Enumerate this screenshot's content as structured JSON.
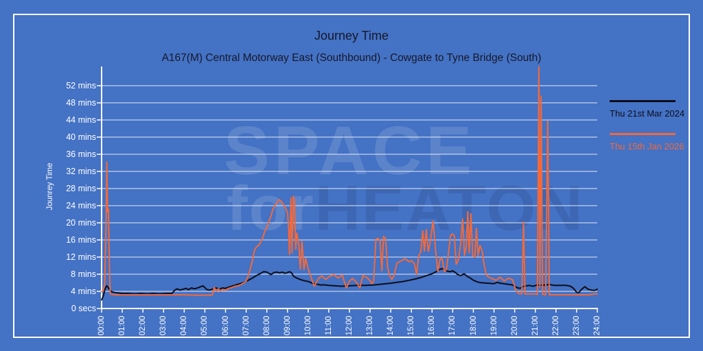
{
  "title": "Journey Time",
  "subtitle": "A167(M) Central Motorway East (Southbound) - Cowgate to Tyne Bridge (South)",
  "watermark": {
    "line1": "SPACE",
    "line2_light": "for",
    "line2_dark": "HEATON"
  },
  "colors": {
    "background": "#4472c4",
    "frame": "#ffffff",
    "grid": "#ffffff",
    "tick_text": "#ffffff",
    "title_text": "#15182b",
    "series_2024": "#0d0d1a",
    "series_2026": "#f2693c"
  },
  "chart_data": {
    "type": "line",
    "title": "Journey Time",
    "xlabel": "",
    "ylabel": "Jounrey Time",
    "grid": true,
    "x_axis": {
      "range_hours": [
        0,
        24
      ],
      "ticks": [
        "00:00",
        "01:00",
        "02:00",
        "03:00",
        "04:00",
        "05:00",
        "06:00",
        "07:00",
        "08:00",
        "09:00",
        "10:00",
        "11:00",
        "12:00",
        "13:00",
        "14:00",
        "15:00",
        "16:00",
        "17:00",
        "18:00",
        "19:00",
        "20:00",
        "21:00",
        "22:00",
        "23:00",
        "24:00"
      ]
    },
    "y_axis": {
      "unit": "minutes",
      "ylim_minutes": [
        0,
        56.5
      ],
      "tick_minutes": [
        0,
        4,
        8,
        12,
        16,
        20,
        24,
        28,
        32,
        36,
        40,
        44,
        48,
        52
      ],
      "tick_labels": [
        "0 secs",
        "4 mins",
        "8 mins",
        "12 mins",
        "16 mins",
        "20 mins",
        "24 mins",
        "28 mins",
        "32 mins",
        "36 mins",
        "40 mins",
        "44 mins",
        "48 mins",
        "52 mins"
      ]
    },
    "legend": {
      "position": "right",
      "entries": [
        {
          "label": "Thu 21st Mar 2024",
          "color": "#0d0d1a"
        },
        {
          "label": "Thu 15th Jan 2026",
          "color": "#f2693c"
        }
      ]
    },
    "series": [
      {
        "name": "Thu 21st Mar 2024",
        "color": "#0d0d1a",
        "points_hour_minutes": [
          [
            0,
            2.0
          ],
          [
            0.08,
            2.9
          ],
          [
            0.17,
            4.6
          ],
          [
            0.25,
            5.3
          ],
          [
            0.33,
            4.8
          ],
          [
            0.42,
            4.2
          ],
          [
            0.5,
            3.9
          ],
          [
            0.67,
            3.7
          ],
          [
            0.85,
            3.6
          ],
          [
            1.0,
            3.5
          ],
          [
            1.3,
            3.5
          ],
          [
            1.6,
            3.4
          ],
          [
            1.9,
            3.5
          ],
          [
            2.2,
            3.4
          ],
          [
            2.5,
            3.5
          ],
          [
            2.8,
            3.4
          ],
          [
            3.1,
            3.5
          ],
          [
            3.4,
            3.5
          ],
          [
            3.55,
            4.3
          ],
          [
            3.65,
            4.6
          ],
          [
            3.8,
            4.3
          ],
          [
            3.95,
            4.5
          ],
          [
            4.1,
            4.7
          ],
          [
            4.2,
            4.4
          ],
          [
            4.35,
            4.8
          ],
          [
            4.5,
            4.6
          ],
          [
            4.7,
            4.9
          ],
          [
            4.9,
            5.3
          ],
          [
            5.0,
            4.9
          ],
          [
            5.1,
            4.4
          ],
          [
            5.25,
            4.3
          ],
          [
            5.4,
            4.6
          ],
          [
            5.55,
            4.8
          ],
          [
            5.7,
            4.5
          ],
          [
            5.85,
            4.8
          ],
          [
            6.0,
            4.7
          ],
          [
            6.15,
            5.0
          ],
          [
            6.3,
            5.2
          ],
          [
            6.5,
            5.5
          ],
          [
            6.7,
            5.8
          ],
          [
            6.9,
            6.1
          ],
          [
            7.1,
            6.6
          ],
          [
            7.3,
            7.1
          ],
          [
            7.5,
            7.7
          ],
          [
            7.7,
            8.2
          ],
          [
            7.85,
            8.6
          ],
          [
            8.0,
            8.5
          ],
          [
            8.1,
            8.2
          ],
          [
            8.2,
            7.9
          ],
          [
            8.35,
            8.4
          ],
          [
            8.5,
            8.5
          ],
          [
            8.62,
            8.3
          ],
          [
            8.75,
            8.5
          ],
          [
            8.88,
            8.2
          ],
          [
            9.0,
            8.4
          ],
          [
            9.1,
            8.6
          ],
          [
            9.2,
            8.3
          ],
          [
            9.3,
            7.5
          ],
          [
            9.45,
            7.1
          ],
          [
            9.6,
            6.8
          ],
          [
            9.8,
            6.5
          ],
          [
            10.0,
            6.3
          ],
          [
            10.2,
            5.9
          ],
          [
            10.4,
            5.7
          ],
          [
            10.6,
            5.5
          ],
          [
            10.8,
            5.5
          ],
          [
            11.0,
            5.4
          ],
          [
            11.3,
            5.3
          ],
          [
            11.6,
            5.2
          ],
          [
            12.0,
            5.3
          ],
          [
            12.4,
            5.4
          ],
          [
            12.8,
            5.4
          ],
          [
            13.2,
            5.5
          ],
          [
            13.6,
            5.7
          ],
          [
            14.0,
            5.9
          ],
          [
            14.3,
            6.1
          ],
          [
            14.6,
            6.3
          ],
          [
            14.9,
            6.6
          ],
          [
            15.2,
            6.9
          ],
          [
            15.5,
            7.3
          ],
          [
            15.8,
            7.8
          ],
          [
            16.0,
            8.1
          ],
          [
            16.2,
            8.6
          ],
          [
            16.35,
            9.1
          ],
          [
            16.5,
            9.3
          ],
          [
            16.62,
            9.0
          ],
          [
            16.75,
            8.7
          ],
          [
            16.88,
            8.6
          ],
          [
            17.0,
            8.8
          ],
          [
            17.1,
            8.5
          ],
          [
            17.25,
            7.9
          ],
          [
            17.4,
            7.7
          ],
          [
            17.55,
            8.1
          ],
          [
            17.7,
            7.5
          ],
          [
            17.85,
            7.1
          ],
          [
            18.0,
            6.6
          ],
          [
            18.2,
            6.2
          ],
          [
            18.4,
            6.0
          ],
          [
            18.7,
            5.9
          ],
          [
            19.0,
            5.8
          ],
          [
            19.15,
            6.1
          ],
          [
            19.3,
            5.9
          ],
          [
            19.6,
            5.7
          ],
          [
            19.9,
            5.5
          ],
          [
            20.1,
            4.9
          ],
          [
            20.25,
            4.7
          ],
          [
            20.45,
            5.2
          ],
          [
            20.7,
            5.4
          ],
          [
            20.9,
            5.2
          ],
          [
            21.1,
            5.5
          ],
          [
            21.3,
            5.4
          ],
          [
            21.5,
            5.5
          ],
          [
            21.7,
            5.6
          ],
          [
            21.9,
            5.4
          ],
          [
            22.2,
            5.4
          ],
          [
            22.5,
            5.4
          ],
          [
            22.7,
            5.2
          ],
          [
            22.85,
            4.7
          ],
          [
            23.0,
            3.8
          ],
          [
            23.1,
            3.7
          ],
          [
            23.25,
            4.5
          ],
          [
            23.4,
            5.1
          ],
          [
            23.55,
            4.5
          ],
          [
            23.7,
            4.3
          ],
          [
            23.85,
            4.2
          ],
          [
            24.0,
            4.5
          ]
        ]
      },
      {
        "name": "Thu 15th Jan 2026",
        "color": "#f2693c",
        "points_hour_minutes": [
          [
            0,
            3.9
          ],
          [
            0.08,
            4.1
          ],
          [
            0.15,
            6.0
          ],
          [
            0.22,
            20.0
          ],
          [
            0.25,
            34.2
          ],
          [
            0.29,
            22.5
          ],
          [
            0.33,
            23.2
          ],
          [
            0.38,
            10.0
          ],
          [
            0.42,
            3.4
          ],
          [
            0.6,
            3.2
          ],
          [
            1.0,
            3.2
          ],
          [
            1.5,
            3.2
          ],
          [
            2.0,
            3.2
          ],
          [
            2.5,
            3.2
          ],
          [
            3.0,
            3.2
          ],
          [
            3.5,
            3.2
          ],
          [
            4.0,
            3.2
          ],
          [
            4.5,
            3.1
          ],
          [
            5.0,
            3.1
          ],
          [
            5.35,
            3.1
          ],
          [
            5.45,
            4.9
          ],
          [
            5.55,
            4.0
          ],
          [
            5.65,
            4.6
          ],
          [
            5.75,
            4.1
          ],
          [
            5.85,
            4.4
          ],
          [
            6.0,
            4.3
          ],
          [
            6.15,
            4.7
          ],
          [
            6.3,
            4.9
          ],
          [
            6.45,
            5.2
          ],
          [
            6.6,
            5.3
          ],
          [
            6.75,
            5.6
          ],
          [
            6.9,
            6.0
          ],
          [
            7.0,
            6.4
          ],
          [
            7.1,
            7.6
          ],
          [
            7.2,
            9.2
          ],
          [
            7.3,
            11.2
          ],
          [
            7.4,
            13.6
          ],
          [
            7.5,
            14.4
          ],
          [
            7.6,
            14.7
          ],
          [
            7.7,
            15.4
          ],
          [
            7.8,
            16.5
          ],
          [
            7.9,
            18.0
          ],
          [
            8.0,
            18.9
          ],
          [
            8.1,
            20.3
          ],
          [
            8.2,
            21.6
          ],
          [
            8.3,
            23.2
          ],
          [
            8.4,
            24.1
          ],
          [
            8.5,
            24.7
          ],
          [
            8.6,
            25.4
          ],
          [
            8.7,
            25.0
          ],
          [
            8.8,
            24.3
          ],
          [
            8.9,
            23.5
          ],
          [
            9.0,
            22.4
          ],
          [
            9.05,
            19.0
          ],
          [
            9.1,
            12.6
          ],
          [
            9.17,
            25.8
          ],
          [
            9.22,
            13.0
          ],
          [
            9.28,
            26.2
          ],
          [
            9.33,
            25.4
          ],
          [
            9.4,
            13.8
          ],
          [
            9.45,
            17.6
          ],
          [
            9.55,
            14.9
          ],
          [
            9.62,
            9.2
          ],
          [
            9.7,
            15.7
          ],
          [
            9.8,
            9.1
          ],
          [
            9.88,
            11.7
          ],
          [
            10.0,
            9.3
          ],
          [
            10.15,
            7.2
          ],
          [
            10.3,
            5.2
          ],
          [
            10.5,
            7.0
          ],
          [
            10.65,
            7.6
          ],
          [
            10.85,
            6.8
          ],
          [
            11.05,
            7.5
          ],
          [
            11.25,
            7.9
          ],
          [
            11.45,
            7.1
          ],
          [
            11.65,
            7.8
          ],
          [
            11.85,
            4.8
          ],
          [
            12.0,
            6.4
          ],
          [
            12.15,
            7.0
          ],
          [
            12.35,
            6.1
          ],
          [
            12.5,
            4.8
          ],
          [
            12.65,
            7.7
          ],
          [
            12.85,
            7.2
          ],
          [
            13.0,
            6.5
          ],
          [
            13.08,
            5.8
          ],
          [
            13.17,
            6.4
          ],
          [
            13.28,
            16.1
          ],
          [
            13.38,
            16.4
          ],
          [
            13.48,
            15.8
          ],
          [
            13.57,
            8.8
          ],
          [
            13.65,
            16.8
          ],
          [
            13.75,
            16.4
          ],
          [
            13.85,
            9.4
          ],
          [
            13.95,
            7.6
          ],
          [
            14.05,
            6.8
          ],
          [
            14.15,
            7.6
          ],
          [
            14.3,
            10.6
          ],
          [
            14.5,
            11.1
          ],
          [
            14.7,
            11.6
          ],
          [
            14.88,
            10.9
          ],
          [
            15.0,
            11.2
          ],
          [
            15.15,
            10.4
          ],
          [
            15.25,
            7.9
          ],
          [
            15.35,
            12.3
          ],
          [
            15.45,
            13.1
          ],
          [
            15.55,
            18.1
          ],
          [
            15.63,
            13.4
          ],
          [
            15.72,
            18.4
          ],
          [
            15.82,
            13.3
          ],
          [
            15.92,
            15.8
          ],
          [
            16.05,
            20.4
          ],
          [
            16.17,
            13.8
          ],
          [
            16.28,
            8.6
          ],
          [
            16.4,
            11.9
          ],
          [
            16.5,
            11.4
          ],
          [
            16.6,
            8.6
          ],
          [
            16.7,
            9.2
          ],
          [
            16.8,
            13.2
          ],
          [
            16.9,
            17.1
          ],
          [
            17.0,
            17.4
          ],
          [
            17.08,
            17.0
          ],
          [
            17.17,
            10.3
          ],
          [
            17.28,
            11.4
          ],
          [
            17.38,
            14.9
          ],
          [
            17.48,
            20.9
          ],
          [
            17.57,
            12.4
          ],
          [
            17.65,
            14.1
          ],
          [
            17.73,
            22.6
          ],
          [
            17.8,
            13.0
          ],
          [
            17.88,
            22.1
          ],
          [
            17.97,
            12.3
          ],
          [
            18.07,
            12.0
          ],
          [
            18.15,
            18.7
          ],
          [
            18.23,
            12.3
          ],
          [
            18.32,
            14.7
          ],
          [
            18.43,
            13.4
          ],
          [
            18.53,
            10.0
          ],
          [
            18.63,
            7.8
          ],
          [
            18.75,
            7.3
          ],
          [
            18.9,
            7.0
          ],
          [
            19.1,
            6.6
          ],
          [
            19.3,
            7.3
          ],
          [
            19.5,
            6.4
          ],
          [
            19.7,
            7.1
          ],
          [
            19.9,
            6.7
          ],
          [
            20.05,
            4.3
          ],
          [
            20.18,
            3.5
          ],
          [
            20.35,
            3.4
          ],
          [
            20.43,
            20.2
          ],
          [
            20.5,
            3.4
          ],
          [
            20.75,
            3.4
          ],
          [
            21.0,
            3.4
          ],
          [
            21.1,
            3.3
          ],
          [
            21.17,
            56.4
          ],
          [
            21.22,
            5.0
          ],
          [
            21.28,
            49.6
          ],
          [
            21.35,
            3.3
          ],
          [
            21.5,
            3.2
          ],
          [
            21.6,
            43.7
          ],
          [
            21.68,
            3.2
          ],
          [
            22.0,
            3.2
          ],
          [
            22.4,
            3.2
          ],
          [
            22.8,
            3.2
          ],
          [
            23.2,
            3.2
          ],
          [
            23.6,
            3.2
          ],
          [
            23.9,
            3.4
          ],
          [
            24.0,
            3.4
          ]
        ]
      }
    ]
  }
}
